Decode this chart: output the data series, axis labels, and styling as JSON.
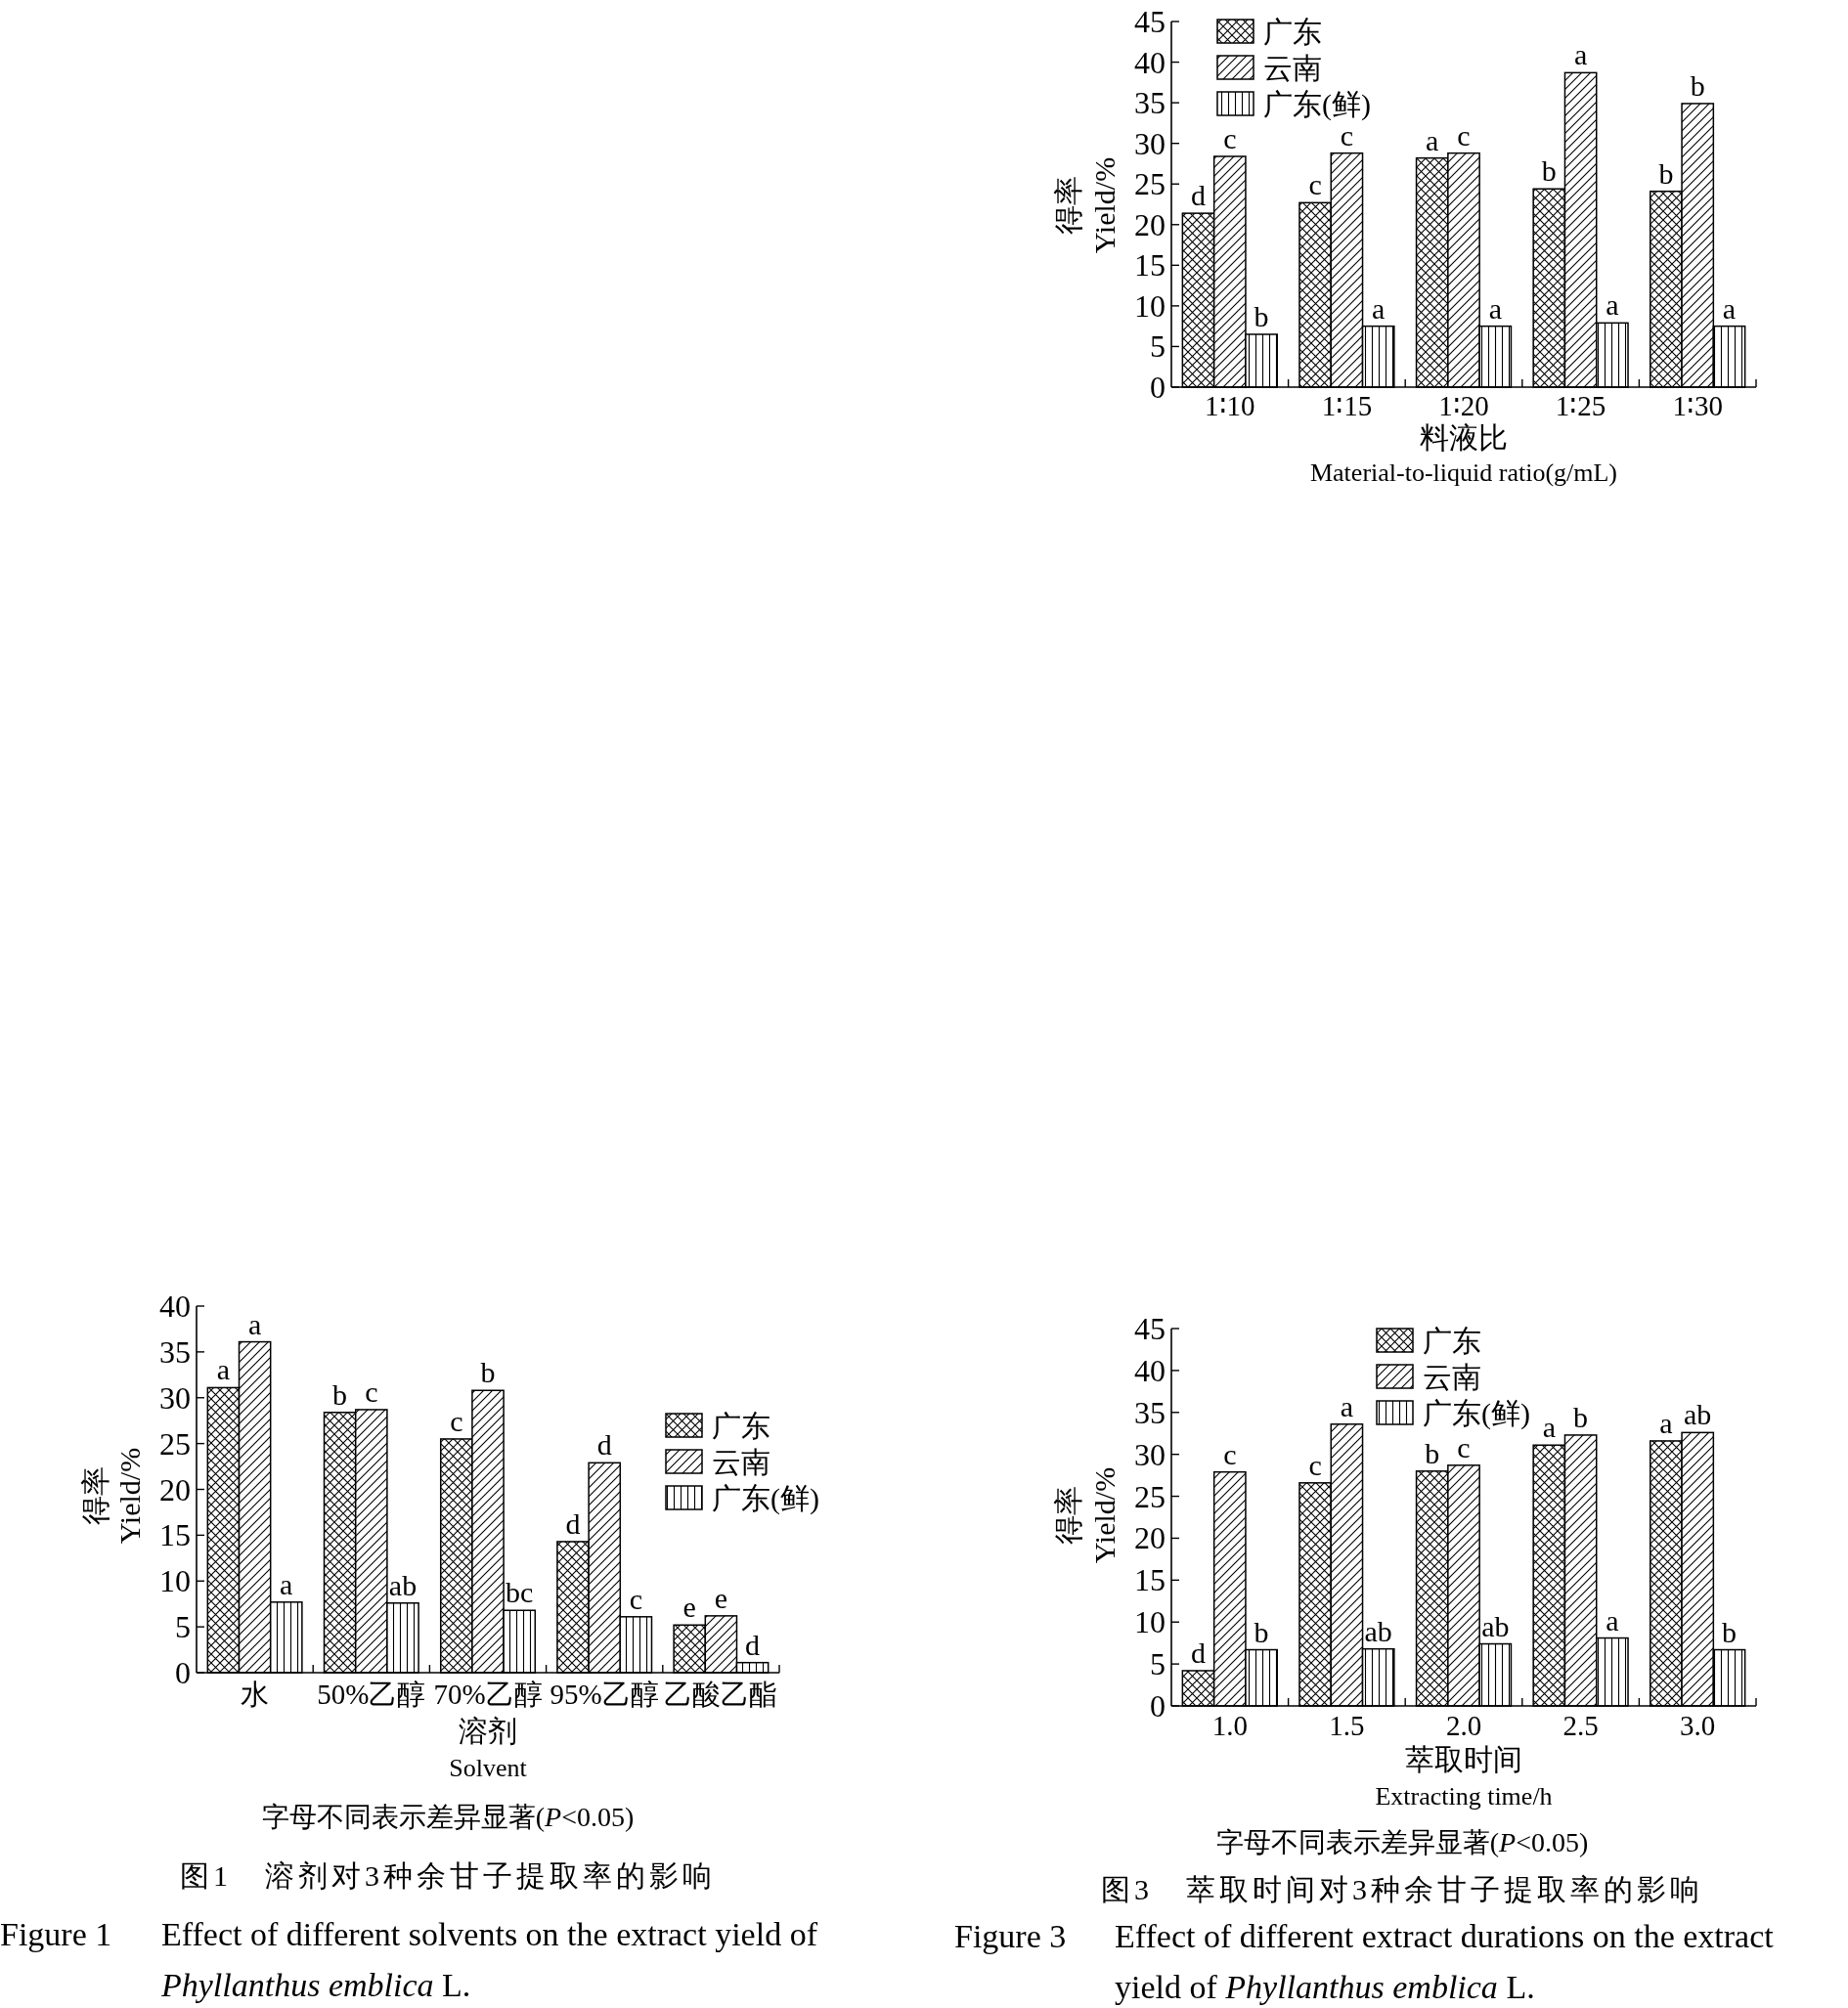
{
  "chart_data": [
    {
      "type": "bar",
      "categories": [
        "1∶10",
        "1∶15",
        "1∶20",
        "1∶25",
        "1∶30"
      ],
      "xlabel": "料液比\nMaterial-to-liquid ratio(g/mL)",
      "ylabel": "得率\nYield/%",
      "ylim": [
        0,
        45
      ],
      "yticks": [
        0,
        5,
        10,
        15,
        20,
        25,
        30,
        35,
        40,
        45
      ],
      "legend": "top left",
      "series": [
        {
          "name": "广东",
          "color": "#000000",
          "values": [
            21.4,
            22.7,
            28.2,
            24.4,
            24.1
          ],
          "value_labels": [
            "d",
            "c",
            "a",
            "b",
            "b"
          ]
        },
        {
          "name": "云南",
          "color": "#000000",
          "values": [
            28.4,
            28.8,
            28.8,
            38.7,
            34.9
          ],
          "value_labels": [
            "c",
            "c",
            "c",
            "a",
            "b"
          ]
        },
        {
          "name": "广东(鲜)",
          "color": "#000000",
          "values": [
            6.5,
            7.5,
            7.5,
            7.9,
            7.5
          ],
          "value_labels": [
            "b",
            "a",
            "a",
            "a",
            "a"
          ]
        }
      ]
    },
    {
      "type": "bar",
      "categories": [
        "水",
        "50%乙醇",
        "70%乙醇",
        "95%乙醇",
        "乙酸乙酯"
      ],
      "xlabel": "溶剂\nSolvent",
      "ylabel": "得率\nYield/%",
      "ylim": [
        0,
        40
      ],
      "yticks": [
        0,
        5,
        10,
        15,
        20,
        25,
        30,
        35,
        40
      ],
      "legend": "right",
      "annotations": [
        "字母不同表示差异显著(*P*<0.05)",
        "图1　溶剂对3种余甘子提取率的影响",
        "Figure 1　Effect of different solvents on the extract yield of *Phyllanthus emblica* L."
      ],
      "series": [
        {
          "name": "广东",
          "color": "#000000",
          "values": [
            31.1,
            28.4,
            25.5,
            14.3,
            5.2
          ],
          "value_labels": [
            "a",
            "b",
            "c",
            "d",
            "e"
          ]
        },
        {
          "name": "云南",
          "color": "#000000",
          "values": [
            36.1,
            28.7,
            30.8,
            22.9,
            6.2
          ],
          "value_labels": [
            "a",
            "c",
            "b",
            "d",
            "e"
          ]
        },
        {
          "name": "广东(鲜)",
          "color": "#000000",
          "values": [
            7.7,
            7.6,
            6.8,
            6.1,
            1.1
          ],
          "value_labels": [
            "a",
            "ab",
            "bc",
            "c",
            "d"
          ]
        }
      ]
    },
    {
      "type": "bar",
      "categories": [
        "1.0",
        "1.5",
        "2.0",
        "2.5",
        "3.0"
      ],
      "xlabel": "萃取时间\nExtracting time/h",
      "ylabel": "得率\nYield/%",
      "ylim": [
        0,
        45
      ],
      "yticks": [
        0,
        5,
        10,
        15,
        20,
        25,
        30,
        35,
        40,
        45
      ],
      "legend": "top",
      "annotations": [
        "字母不同表示差异显著(*P*<0.05)",
        "图3　萃取时间对3种余甘子提取率的影响",
        "Figure 3　Effect of different extract durations on the extract yield of *Phyllanthus emblica* L."
      ],
      "series": [
        {
          "name": "广东",
          "color": "#000000",
          "values": [
            4.2,
            26.6,
            28.0,
            31.1,
            31.6
          ],
          "value_labels": [
            "d",
            "c",
            "b",
            "a",
            "a"
          ]
        },
        {
          "name": "云南",
          "color": "#000000",
          "values": [
            27.9,
            33.6,
            28.7,
            32.3,
            32.6
          ],
          "value_labels": [
            "c",
            "a",
            "c",
            "b",
            "ab"
          ]
        },
        {
          "name": "广东(鲜)",
          "color": "#000000",
          "values": [
            6.7,
            6.8,
            7.4,
            8.1,
            6.7
          ],
          "value_labels": [
            "b",
            "ab",
            "ab",
            "a",
            "b"
          ]
        }
      ]
    }
  ]
}
